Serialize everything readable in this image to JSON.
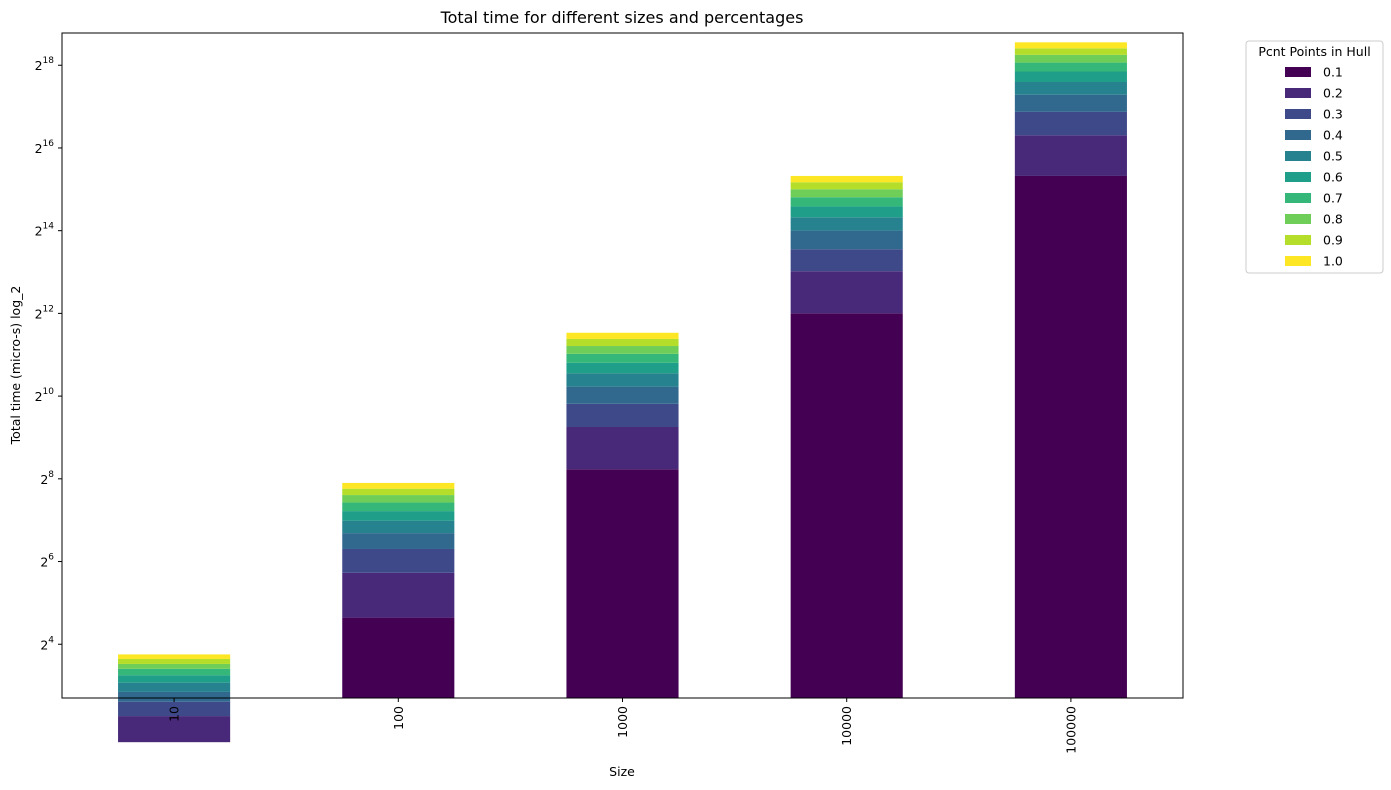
{
  "chart_data": {
    "type": "bar",
    "stacked": true,
    "title": "Total time for different sizes and percentages",
    "xlabel": "Size",
    "ylabel": "Total time (micro-s) log_2",
    "yscale": "log2",
    "ylim": [
      6.5,
      450000
    ],
    "yticks": [
      {
        "base": "2",
        "exp": "4",
        "value": 16
      },
      {
        "base": "2",
        "exp": "6",
        "value": 64
      },
      {
        "base": "2",
        "exp": "8",
        "value": 256
      },
      {
        "base": "2",
        "exp": "10",
        "value": 1024
      },
      {
        "base": "2",
        "exp": "12",
        "value": 4096
      },
      {
        "base": "2",
        "exp": "14",
        "value": 16384
      },
      {
        "base": "2",
        "exp": "16",
        "value": 65536
      },
      {
        "base": "2",
        "exp": "18",
        "value": 262144
      }
    ],
    "categories": [
      "10",
      "100",
      "1000",
      "10000",
      "100000"
    ],
    "cumulative_totals": {
      "0.1": [
        3.1,
        25,
        300,
        4100,
        41000
      ],
      "0.2": [
        4.8,
        53,
        610,
        8300,
        81000
      ],
      "0.3": [
        6.1,
        79,
        900,
        12000,
        120000
      ],
      "0.4": [
        7.2,
        103,
        1200,
        16400,
        160000
      ],
      "0.5": [
        8.4,
        127,
        1500,
        20500,
        198000
      ],
      "0.6": [
        9.5,
        149,
        1790,
        24600,
        236000
      ],
      "0.7": [
        10.6,
        172,
        2080,
        28700,
        274000
      ],
      "0.8": [
        11.5,
        195,
        2370,
        32800,
        312000
      ],
      "0.9": [
        12.5,
        217,
        2670,
        36900,
        348000
      ],
      "1.0": [
        13.5,
        239,
        2960,
        41000,
        385000
      ]
    },
    "legend": {
      "title": "Pcnt Points in Hull",
      "placement": "outside-top-right",
      "entries": [
        {
          "label": "0.1",
          "color": "#440154"
        },
        {
          "label": "0.2",
          "color": "#482878"
        },
        {
          "label": "0.3",
          "color": "#3e4989"
        },
        {
          "label": "0.4",
          "color": "#31688e"
        },
        {
          "label": "0.5",
          "color": "#26828e"
        },
        {
          "label": "0.6",
          "color": "#1f9e89"
        },
        {
          "label": "0.7",
          "color": "#35b779"
        },
        {
          "label": "0.8",
          "color": "#6ece58"
        },
        {
          "label": "0.9",
          "color": "#b5de2b"
        },
        {
          "label": "1.0",
          "color": "#fde725"
        }
      ]
    },
    "grid": false
  }
}
